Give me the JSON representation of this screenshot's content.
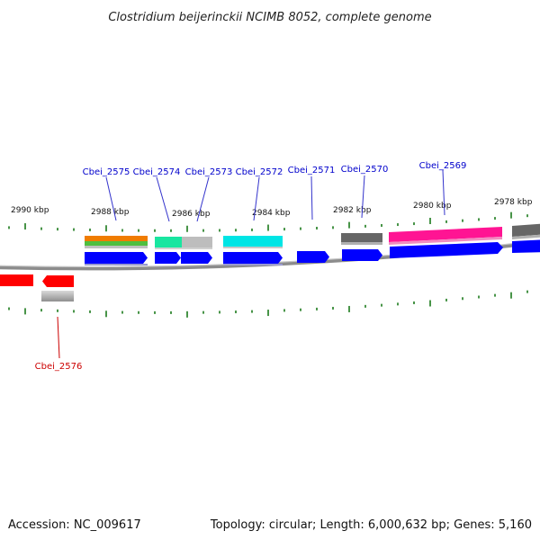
{
  "title": "Clostridium beijerinckii NCIMB 8052, complete genome",
  "footer": {
    "accession": "Accession: NC_009617",
    "summary": "Topology: circular; Length: 6,000,632 bp; Genes: 5,160"
  },
  "colors": {
    "backbone": "#8c8c8c",
    "tick": "#1a7a1a",
    "forward_label": "#0000cc",
    "reverse_label": "#cc0000",
    "label_line_forward": "#3333cc",
    "label_line_reverse": "#cc0000"
  },
  "scale": {
    "labels": [
      "2990 kbp",
      "2988 kbp",
      "2986 kbp",
      "2984 kbp",
      "2982 kbp",
      "2980 kbp",
      "2978 kbp"
    ]
  },
  "genes": [
    {
      "name": "Cbei_2575",
      "strand": "forward",
      "label_color": "#0000cc"
    },
    {
      "name": "Cbei_2574",
      "strand": "forward",
      "label_color": "#0000cc"
    },
    {
      "name": "Cbei_2573",
      "strand": "forward",
      "label_color": "#0000cc"
    },
    {
      "name": "Cbei_2572",
      "strand": "forward",
      "label_color": "#0000cc"
    },
    {
      "name": "Cbei_2571",
      "strand": "forward",
      "label_color": "#0000cc"
    },
    {
      "name": "Cbei_2570",
      "strand": "forward",
      "label_color": "#0000cc"
    },
    {
      "name": "Cbei_2569",
      "strand": "forward",
      "label_color": "#0000cc"
    },
    {
      "name": "Cbei_2576",
      "strand": "reverse",
      "label_color": "#cc0000"
    }
  ],
  "feature_colors": {
    "cds_forward": "#0000ff",
    "cds_reverse": "#ff0000",
    "orange": "#f07c00",
    "green": "#4fbf3f",
    "spring_green": "#19e6a0",
    "light_gray": "#bdbdbd",
    "cyan": "#00e5e5",
    "dark_gray": "#666666",
    "magenta": "#ff1493"
  }
}
